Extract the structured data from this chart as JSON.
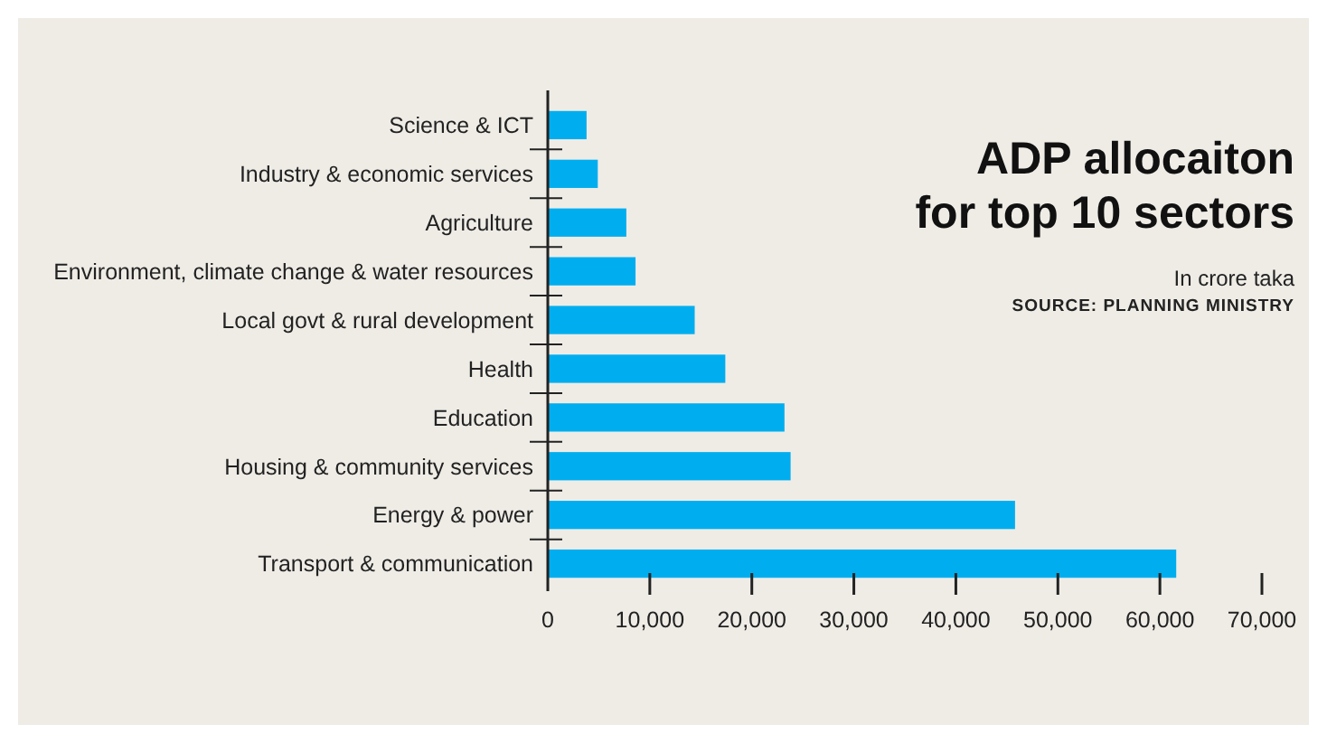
{
  "chart_data": {
    "type": "bar",
    "orientation": "horizontal",
    "title": "ADP allocaiton for top 10 sectors",
    "subtitle": "In crore taka",
    "annotations": [
      "SOURCE: PLANNING MINISTRY"
    ],
    "categories": [
      "Science & ICT",
      "Industry & economic services",
      "Agriculture",
      "Environment, climate change & water resources",
      "Local govt & rural development",
      "Health",
      "Education",
      "Housing & community services",
      "Energy & power",
      "Transport & communication"
    ],
    "values": [
      3800,
      4900,
      7700,
      8600,
      14400,
      17400,
      23200,
      23800,
      45800,
      61600
    ],
    "color": "#00aeef",
    "xlim": [
      0,
      70000
    ],
    "xticks": [
      0,
      {
        "value": 10000,
        "label": "10,000"
      },
      {
        "value": 20000,
        "label": "20,000"
      },
      {
        "value": 30000,
        "label": "30,000"
      },
      {
        "value": 40000,
        "label": "40,000"
      },
      {
        "value": 50000,
        "label": "50,000"
      },
      {
        "value": 60000,
        "label": "60,000"
      },
      {
        "value": 70000,
        "label": "70,000"
      }
    ],
    "grid": false
  }
}
